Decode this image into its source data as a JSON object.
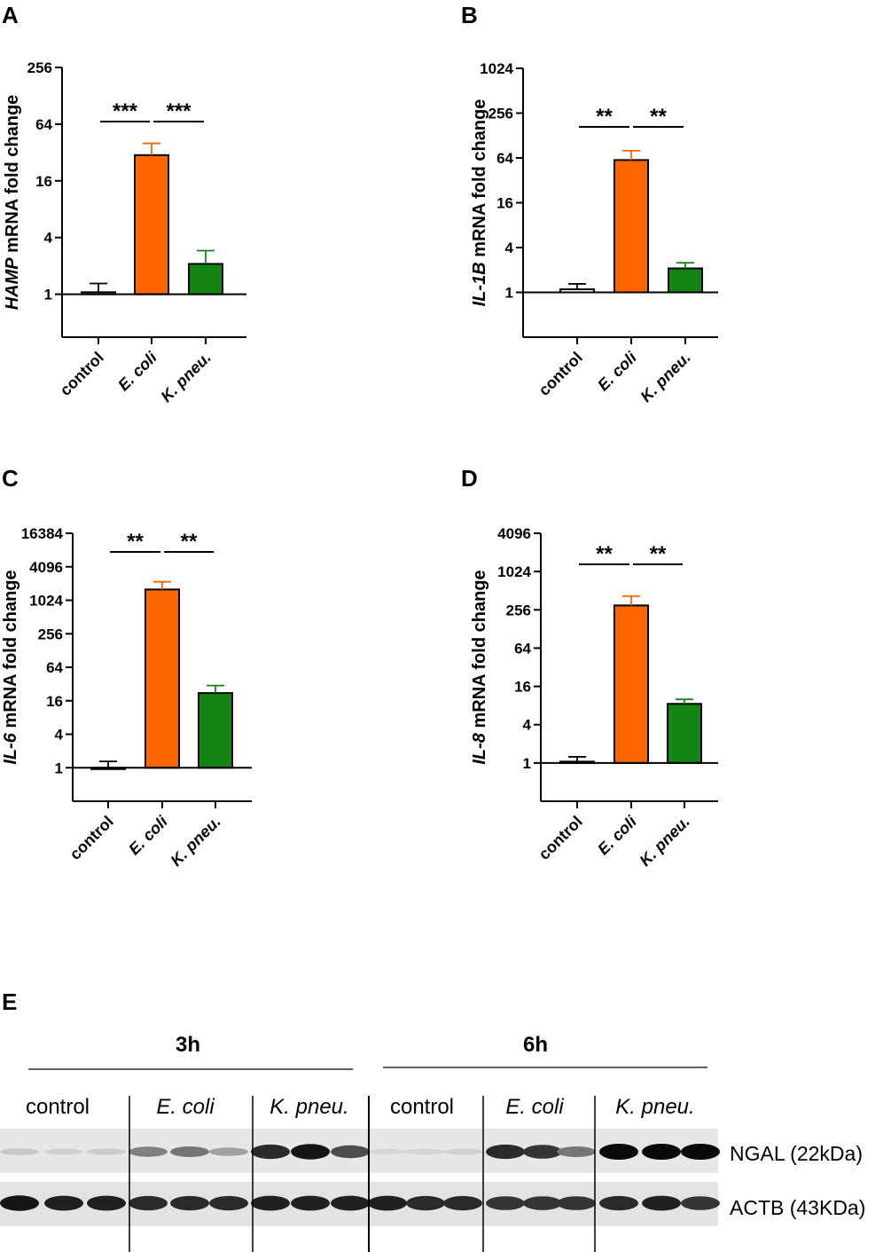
{
  "panels": {
    "A": "A",
    "B": "B",
    "C": "C",
    "D": "D",
    "E": "E"
  },
  "chart_data": [
    {
      "id": "A",
      "type": "bar",
      "log_base": 2,
      "ylabel_gene": "HAMP",
      "ylabel_rest": " mRNA fold change",
      "categories": [
        "control",
        "E. coli",
        "K. pneu."
      ],
      "values": [
        1.05,
        30,
        2.1
      ],
      "errors": [
        1.3,
        40,
        2.9
      ],
      "colors": [
        "#ffffff",
        "#ff6600",
        "#138513"
      ],
      "error_colors": [
        "#000000",
        "#ff6600",
        "#138513"
      ],
      "yticks": [
        1,
        4,
        16,
        64,
        256
      ],
      "ytick_labels": [
        "1",
        "4",
        "16",
        "64",
        "256"
      ],
      "ylim": [
        0.35,
        256
      ],
      "significance": [
        {
          "from": 0,
          "to": 1,
          "label": "***"
        },
        {
          "from": 1,
          "to": 2,
          "label": "***"
        }
      ]
    },
    {
      "id": "B",
      "type": "bar",
      "log_base": 2,
      "ylabel_gene": "IL-1B",
      "ylabel_rest": " mRNA fold change",
      "categories": [
        "control",
        "E. coli",
        "K. pneu."
      ],
      "values": [
        1.1,
        60,
        2.1
      ],
      "errors": [
        1.3,
        80,
        2.5
      ],
      "colors": [
        "#ffffff",
        "#ff6600",
        "#138513"
      ],
      "error_colors": [
        "#000000",
        "#ff6600",
        "#138513"
      ],
      "yticks": [
        1,
        4,
        16,
        64,
        256,
        1024
      ],
      "ytick_labels": [
        "1",
        "4",
        "16",
        "64",
        "256",
        "1024"
      ],
      "ylim": [
        0.25,
        1024
      ],
      "significance": [
        {
          "from": 0,
          "to": 1,
          "label": "**"
        },
        {
          "from": 1,
          "to": 2,
          "label": "**"
        }
      ]
    },
    {
      "id": "C",
      "type": "bar",
      "log_base": 2,
      "ylabel_gene": "IL-6",
      "ylabel_rest": " mRNA fold change",
      "categories": [
        "control",
        "E. coli",
        "K. pneu."
      ],
      "values": [
        0.95,
        1600,
        22
      ],
      "errors": [
        1.3,
        2200,
        30
      ],
      "colors": [
        "#ffffff",
        "#ff6600",
        "#138513"
      ],
      "error_colors": [
        "#000000",
        "#ff6600",
        "#138513"
      ],
      "yticks": [
        1,
        4,
        16,
        64,
        256,
        1024,
        4096,
        16384
      ],
      "ytick_labels": [
        "1",
        "4",
        "16",
        "64",
        "256",
        "1024",
        "4096",
        "16384"
      ],
      "ylim": [
        0.25,
        16384
      ],
      "significance": [
        {
          "from": 0,
          "to": 1,
          "label": "**"
        },
        {
          "from": 1,
          "to": 2,
          "label": "**"
        }
      ]
    },
    {
      "id": "D",
      "type": "bar",
      "log_base": 2,
      "ylabel_gene": "IL-8",
      "ylabel_rest": " mRNA fold change",
      "categories": [
        "control",
        "E. coli",
        "K. pneu."
      ],
      "values": [
        1.05,
        300,
        8.5
      ],
      "errors": [
        1.25,
        420,
        10
      ],
      "colors": [
        "#ffffff",
        "#ff6600",
        "#138513"
      ],
      "error_colors": [
        "#000000",
        "#ff6600",
        "#138513"
      ],
      "yticks": [
        1,
        4,
        16,
        64,
        256,
        1024,
        4096
      ],
      "ytick_labels": [
        "1",
        "4",
        "16",
        "64",
        "256",
        "1024",
        "4096"
      ],
      "ylim": [
        0.25,
        4096
      ],
      "significance": [
        {
          "from": 0,
          "to": 1,
          "label": "**"
        },
        {
          "from": 1,
          "to": 2,
          "label": "**"
        }
      ]
    }
  ],
  "blot": {
    "timepoints": [
      "3h",
      "6h"
    ],
    "lane_groups": [
      "control",
      "E. coli",
      "K. pneu.",
      "control",
      "E. coli",
      "K. pneu."
    ],
    "proteins": [
      "NGAL (22kDa)",
      "ACTB (43KDa)"
    ],
    "ngal_intensity": [
      0.12,
      0.08,
      0.1,
      0.45,
      0.5,
      0.3,
      0.85,
      0.95,
      0.7,
      0.05,
      0.06,
      0.08,
      0.85,
      0.8,
      0.5,
      1.0,
      1.0,
      1.0
    ],
    "actb_intensity": [
      0.95,
      0.9,
      0.9,
      0.85,
      0.85,
      0.85,
      0.9,
      0.9,
      0.9,
      0.9,
      0.85,
      0.85,
      0.8,
      0.8,
      0.8,
      0.85,
      0.9,
      0.8
    ]
  }
}
